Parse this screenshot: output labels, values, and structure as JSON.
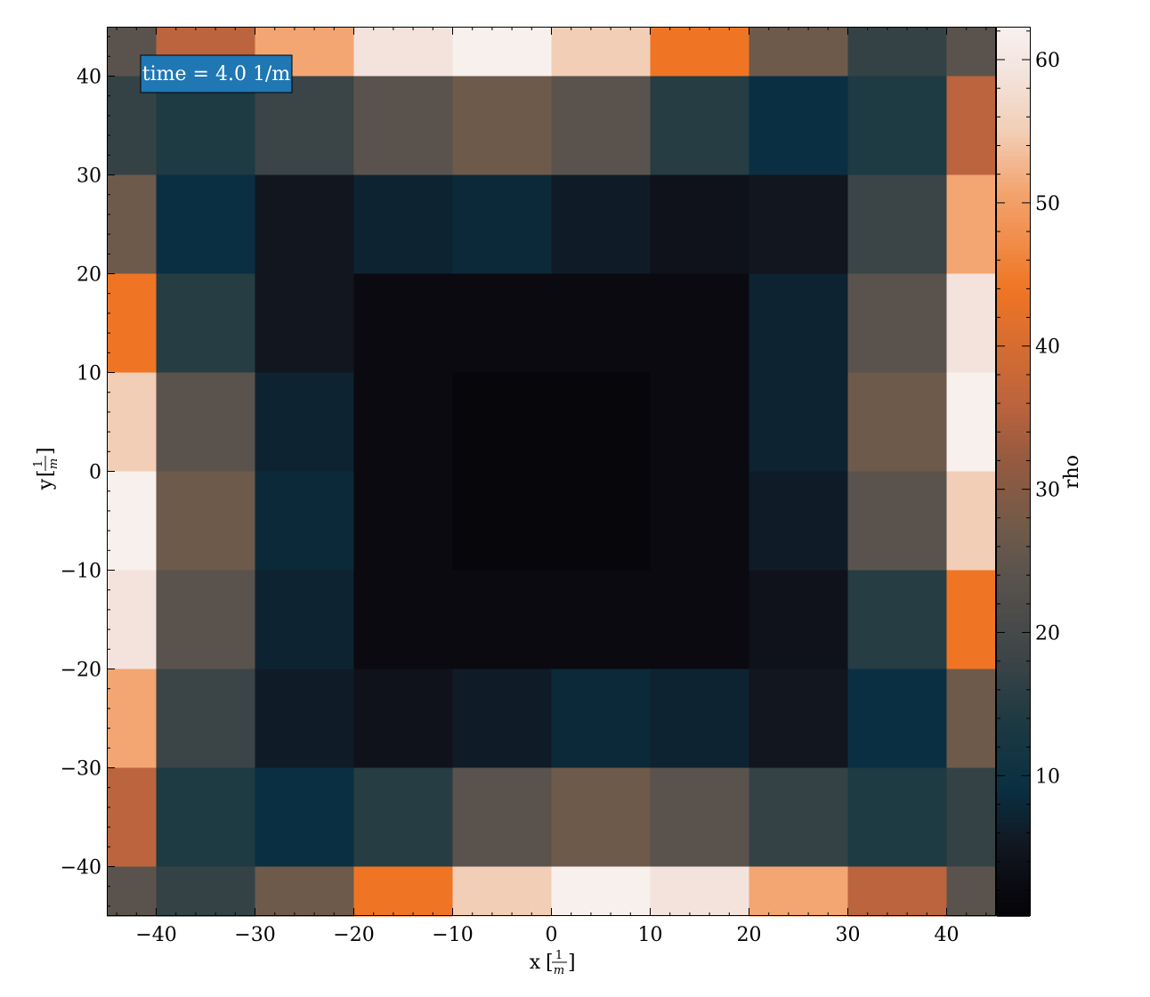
{
  "chart_data": {
    "type": "heatmap",
    "title": "",
    "xlabel": "x",
    "ylabel": "y",
    "axis_unit": {
      "numerator": "1",
      "denominator": "m"
    },
    "xlim": [
      -45,
      45
    ],
    "ylim": [
      -45,
      45
    ],
    "x_centers": [
      -42.5,
      -35,
      -25,
      -15,
      -5,
      5,
      15,
      25,
      35,
      42.5
    ],
    "y_centers": [
      42.5,
      35,
      25,
      15,
      5,
      -5,
      -15,
      -25,
      -35,
      -42.5
    ],
    "x_edges": [
      -45,
      -40,
      -30,
      -20,
      -10,
      0,
      10,
      20,
      30,
      40,
      45
    ],
    "y_edges": [
      45,
      40,
      30,
      20,
      10,
      0,
      -10,
      -20,
      -30,
      -40,
      -45
    ],
    "xticks": [
      -40,
      -30,
      -20,
      -10,
      0,
      10,
      20,
      30,
      40
    ],
    "yticks": [
      -40,
      -30,
      -20,
      -10,
      0,
      10,
      20,
      30,
      40
    ],
    "xtick_labels": [
      "−40",
      "−30",
      "−20",
      "−10",
      "0",
      "10",
      "20",
      "30",
      "40"
    ],
    "ytick_labels": [
      "−40",
      "−30",
      "−20",
      "−10",
      "0",
      "10",
      "20",
      "30",
      "40"
    ],
    "values": [
      [
        24,
        36,
        51,
        59,
        62,
        55,
        44,
        27,
        17,
        24
      ],
      [
        17,
        14,
        18,
        24,
        27,
        24,
        15,
        9,
        14,
        36
      ],
      [
        27,
        9,
        5,
        7,
        8,
        6,
        4,
        5,
        18,
        51
      ],
      [
        44,
        15,
        5,
        2,
        2,
        2,
        2,
        7,
        24,
        59
      ],
      [
        55,
        24,
        7,
        2,
        1,
        1,
        2,
        7,
        27,
        62
      ],
      [
        62,
        27,
        8,
        2,
        1,
        1,
        2,
        6,
        24,
        55
      ],
      [
        59,
        24,
        7,
        2,
        2,
        2,
        2,
        4,
        15,
        44
      ],
      [
        51,
        18,
        6,
        4,
        6,
        8,
        7,
        5,
        9,
        27
      ],
      [
        36,
        14,
        9,
        15,
        24,
        27,
        24,
        17,
        14,
        17
      ],
      [
        24,
        17,
        27,
        44,
        55,
        62,
        59,
        51,
        36,
        24
      ]
    ],
    "colorbar": {
      "label": "rho",
      "vmin": 0.2,
      "vmax": 62.3,
      "ticks": [
        10,
        20,
        30,
        40,
        50,
        60
      ],
      "tick_labels": [
        "10",
        "20",
        "30",
        "40",
        "50",
        "60"
      ]
    },
    "colormap_stops": [
      {
        "v": 0.2,
        "color": "#050307"
      },
      {
        "v": 5,
        "color": "#11161f"
      },
      {
        "v": 9,
        "color": "#0a2f42"
      },
      {
        "v": 14,
        "color": "#1e3a42"
      },
      {
        "v": 18,
        "color": "#3b4447"
      },
      {
        "v": 24,
        "color": "#5a534d"
      },
      {
        "v": 27,
        "color": "#6e5a4a"
      },
      {
        "v": 32,
        "color": "#955a40"
      },
      {
        "v": 36,
        "color": "#bc643d"
      },
      {
        "v": 44,
        "color": "#ef7524"
      },
      {
        "v": 51,
        "color": "#f3a672"
      },
      {
        "v": 55,
        "color": "#f2ceb6"
      },
      {
        "v": 59,
        "color": "#f3e3dc"
      },
      {
        "v": 62.3,
        "color": "#f8f1ef"
      }
    ],
    "annotation": {
      "text": "time = 4.0 1/m",
      "position": "top-left",
      "background": "#1f77b4"
    }
  }
}
